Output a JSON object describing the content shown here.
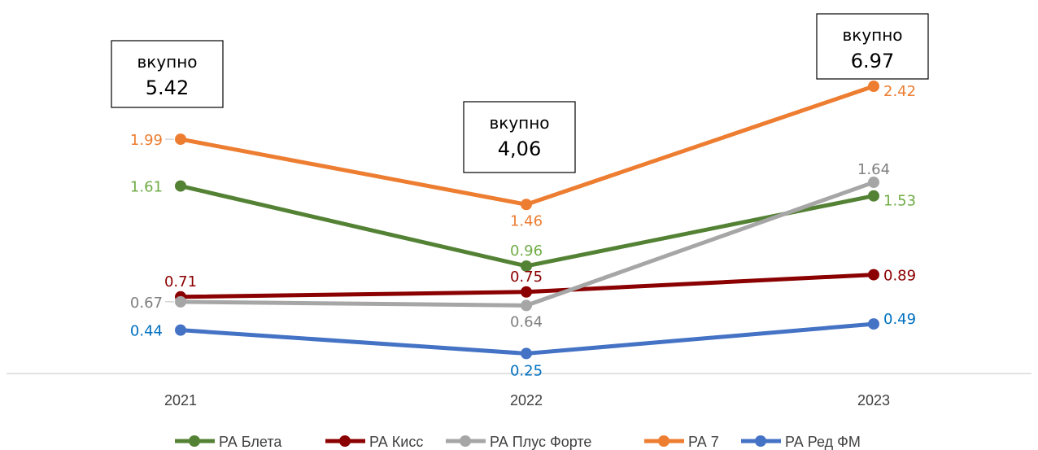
{
  "chart_data": {
    "type": "line",
    "categories": [
      "2021",
      "2022",
      "2023"
    ],
    "series": [
      {
        "name": "РА Блета",
        "color": "#548235",
        "label_color": "#70AD47",
        "values": [
          1.61,
          0.96,
          1.53
        ],
        "labels": [
          "1.61",
          "0.96",
          "1.53"
        ]
      },
      {
        "name": "РА Кисс",
        "color": "#8B0000",
        "label_color": "#8B0000",
        "values": [
          0.71,
          0.75,
          0.89
        ],
        "labels": [
          "0.71",
          "0.75",
          "0.89"
        ]
      },
      {
        "name": "РА Плус Форте",
        "color": "#A6A6A6",
        "label_color": "#7F7F7F",
        "values": [
          0.67,
          0.64,
          1.64
        ],
        "labels": [
          "0.67",
          "0.64",
          "1.64"
        ]
      },
      {
        "name": "РА 7",
        "color": "#ED7D31",
        "label_color": "#ED7D31",
        "values": [
          1.99,
          1.46,
          2.42
        ],
        "labels": [
          "1.99",
          "1.46",
          "2.42"
        ]
      },
      {
        "name": "РА Ред ФМ",
        "color": "#4472C4",
        "label_color": "#0070C0",
        "values": [
          0.44,
          0.25,
          0.49
        ],
        "labels": [
          "0.44",
          "0.25",
          "0.49"
        ]
      }
    ],
    "ylim": [
      0,
      2.5
    ],
    "grid": false,
    "legend": "bottom",
    "annotations": [
      {
        "category": "2021",
        "line1": "вкупно",
        "line2": "5.42"
      },
      {
        "category": "2022",
        "line1": "вкупно",
        "line2": "4,06"
      },
      {
        "category": "2023",
        "line1": "вкупно",
        "line2": "6.97"
      }
    ]
  }
}
